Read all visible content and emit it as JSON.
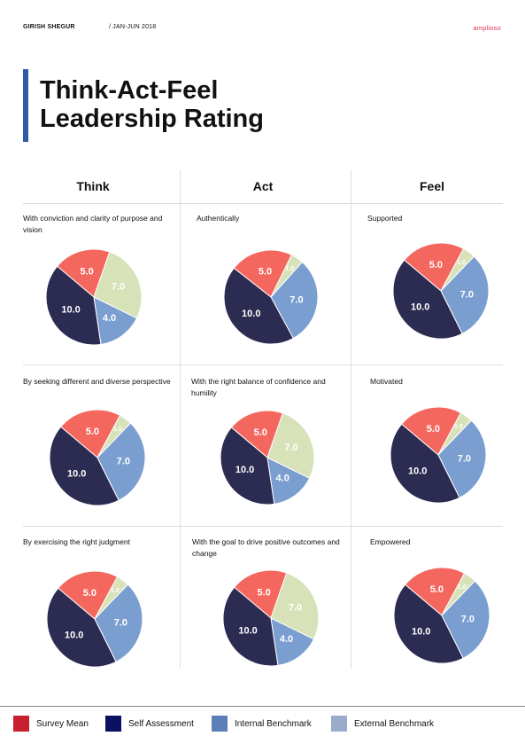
{
  "header": {
    "author": "GIRISH SHEGUR",
    "period": "/ JAN-JUN 2018",
    "brand": "amplioso"
  },
  "title": {
    "line1": "Think-Act-Feel",
    "line2": "Leadership Rating"
  },
  "colors": {
    "accent": "#2e5aa6",
    "brand": "#e0324f"
  },
  "columns": [
    "Think",
    "Act",
    "Feel"
  ],
  "legend": [
    {
      "label": "Survey Mean",
      "color": "#c8202f"
    },
    {
      "label": "Self Assessment",
      "color": "#0c1060"
    },
    {
      "label": "Internal Benchmark",
      "color": "#5b80b8"
    },
    {
      "label": "External Benchmark",
      "color": "#9aaccc"
    }
  ],
  "chart_data": [
    {
      "type": "pie",
      "title": "With conviction and clarity of purpose and vision",
      "column": "Think",
      "slices": [
        {
          "label": "5.0",
          "value": 5,
          "color": "#f4675e"
        },
        {
          "label": "7.0",
          "value": 7,
          "color": "#d8e2b8"
        },
        {
          "label": "4.0",
          "value": 4,
          "color": "#7a9ed0"
        },
        {
          "label": "10.0",
          "value": 10,
          "color": "#2c2c52"
        }
      ]
    },
    {
      "type": "pie",
      "title": "Authentically",
      "column": "Act",
      "slices": [
        {
          "label": "5.0",
          "value": 5,
          "color": "#f4675e"
        },
        {
          "label": "1.0",
          "value": 1,
          "color": "#d8e2b8"
        },
        {
          "label": "7.0",
          "value": 7,
          "color": "#7a9ed0"
        },
        {
          "label": "10.0",
          "value": 10,
          "color": "#2c2c52"
        }
      ]
    },
    {
      "type": "pie",
      "title": "Supported",
      "column": "Feel",
      "slices": [
        {
          "label": "5.0",
          "value": 5,
          "color": "#f4675e"
        },
        {
          "label": "1.0",
          "value": 1,
          "color": "#d8e2b8"
        },
        {
          "label": "7.0",
          "value": 7,
          "color": "#7a9ed0"
        },
        {
          "label": "10.0",
          "value": 10,
          "color": "#2c2c52"
        }
      ]
    },
    {
      "type": "pie",
      "title": "By seeking different and diverse perspective",
      "column": "Think",
      "slices": [
        {
          "label": "5.0",
          "value": 5,
          "color": "#f4675e"
        },
        {
          "label": "1.0",
          "value": 1,
          "color": "#d8e2b8"
        },
        {
          "label": "7.0",
          "value": 7,
          "color": "#7a9ed0"
        },
        {
          "label": "10.0",
          "value": 10,
          "color": "#2c2c52"
        }
      ]
    },
    {
      "type": "pie",
      "title": "With the right balance of confidence and humility",
      "column": "Act",
      "slices": [
        {
          "label": "5.0",
          "value": 5,
          "color": "#f4675e"
        },
        {
          "label": "7.0",
          "value": 7,
          "color": "#d8e2b8"
        },
        {
          "label": "4.0",
          "value": 4,
          "color": "#7a9ed0"
        },
        {
          "label": "10.0",
          "value": 10,
          "color": "#2c2c52"
        }
      ]
    },
    {
      "type": "pie",
      "title": "Motivated",
      "column": "Feel",
      "slices": [
        {
          "label": "5.0",
          "value": 5,
          "color": "#f4675e"
        },
        {
          "label": "1.0",
          "value": 1,
          "color": "#d8e2b8"
        },
        {
          "label": "7.0",
          "value": 7,
          "color": "#7a9ed0"
        },
        {
          "label": "10.0",
          "value": 10,
          "color": "#2c2c52"
        }
      ]
    },
    {
      "type": "pie",
      "title": "By exercising the right judgment",
      "column": "Think",
      "slices": [
        {
          "label": "5.0",
          "value": 5,
          "color": "#f4675e"
        },
        {
          "label": "1.0",
          "value": 1,
          "color": "#d8e2b8"
        },
        {
          "label": "7.0",
          "value": 7,
          "color": "#7a9ed0"
        },
        {
          "label": "10.0",
          "value": 10,
          "color": "#2c2c52"
        }
      ]
    },
    {
      "type": "pie",
      "title": "With the goal to drive positive outcomes and change",
      "column": "Act",
      "slices": [
        {
          "label": "5.0",
          "value": 5,
          "color": "#f4675e"
        },
        {
          "label": "7.0",
          "value": 7,
          "color": "#d8e2b8"
        },
        {
          "label": "4.0",
          "value": 4,
          "color": "#7a9ed0"
        },
        {
          "label": "10.0",
          "value": 10,
          "color": "#2c2c52"
        }
      ]
    },
    {
      "type": "pie",
      "title": "Empowered",
      "column": "Feel",
      "slices": [
        {
          "label": "5.0",
          "value": 5,
          "color": "#f4675e"
        },
        {
          "label": "1.0",
          "value": 1,
          "color": "#d8e2b8"
        },
        {
          "label": "7.0",
          "value": 7,
          "color": "#7a9ed0"
        },
        {
          "label": "10.0",
          "value": 10,
          "color": "#2c2c52"
        }
      ]
    }
  ]
}
